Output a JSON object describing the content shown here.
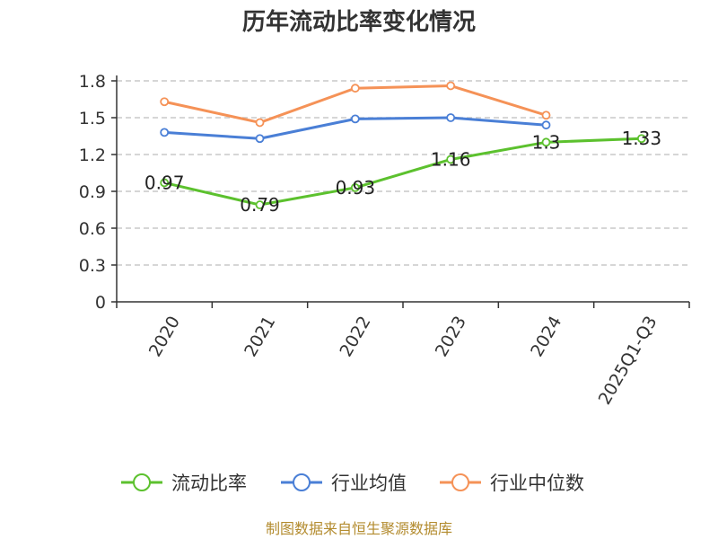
{
  "chart_data": {
    "type": "line",
    "title": "历年流动比率变化情况",
    "categories": [
      "2020",
      "2021",
      "2022",
      "2023",
      "2024",
      "2025Q1-Q3"
    ],
    "y_ticks": [
      "0",
      "0.3",
      "0.6",
      "0.9",
      "1.2",
      "1.5",
      "1.8"
    ],
    "ylim": [
      0,
      1.8
    ],
    "grid": "horizontal-dashed",
    "legend_position": "bottom",
    "series": [
      {
        "name": "流动比率",
        "color": "#5cc12e",
        "values": [
          0.97,
          0.79,
          0.93,
          1.16,
          1.3,
          1.33
        ],
        "labels": [
          "0.97",
          "0.79",
          "0.93",
          "1.16",
          "1.3",
          "1.33"
        ]
      },
      {
        "name": "行业均值",
        "color": "#4a7fd6",
        "values": [
          1.38,
          1.33,
          1.49,
          1.5,
          1.44,
          null
        ]
      },
      {
        "name": "行业中位数",
        "color": "#f59257",
        "values": [
          1.63,
          1.46,
          1.74,
          1.76,
          1.52,
          null
        ]
      }
    ]
  },
  "source": "制图数据来自恒生聚源数据库"
}
